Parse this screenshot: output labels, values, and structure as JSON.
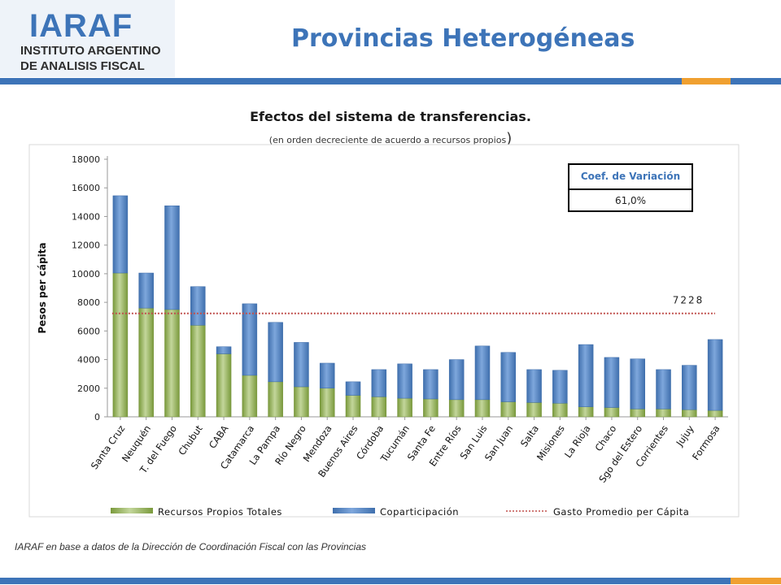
{
  "logo": {
    "wordmark": "IARAF",
    "line1": "INSTITUTO ARGENTINO",
    "line2": "DE ANALISIS FISCAL"
  },
  "slide_title": "Provincias Heterogéneas",
  "source_note": "IARAF en base a datos de la Dirección de Coordinación Fiscal con las Provincias",
  "colors": {
    "brand_blue": "#3d74b8",
    "own_resources": "#9bbb59",
    "coparticipation": "#4f81bd",
    "average_line": "#c0504d",
    "stripe_orange": "#f0a030"
  },
  "coef_box": {
    "header": "Coef. de Variación",
    "value": "61,0%"
  },
  "chart_data": {
    "type": "bar",
    "stacked": true,
    "title": "Efectos del sistema de transferencias.",
    "subtitle": "(en orden decreciente de acuerdo a recursos propios",
    "subtitle_paren": ")",
    "xlabel": "",
    "ylabel": "Pesos per cápita",
    "ylim": [
      0,
      18000
    ],
    "yticks": [
      0,
      2000,
      4000,
      6000,
      8000,
      10000,
      12000,
      14000,
      16000,
      18000
    ],
    "grid": false,
    "legend_position": "bottom",
    "categories": [
      "Santa Cruz",
      "Neuquén",
      "T. del Fuego",
      "Chubut",
      "CABA",
      "Catamarca",
      "La Pampa",
      "Río Negro",
      "Mendoza",
      "Buenos Aires",
      "Córdoba",
      "Tucumán",
      "Santa Fe",
      "Entre Ríos",
      "San Luis",
      "San Juan",
      "Salta",
      "Misiones",
      "La Rioja",
      "Chaco",
      "Sgo del Estero",
      "Corrientes",
      "Jujuy",
      "Formosa"
    ],
    "series": [
      {
        "name": "Recursos Propios Totales",
        "values": [
          10050,
          7600,
          7500,
          6400,
          4400,
          2900,
          2450,
          2100,
          2000,
          1500,
          1400,
          1300,
          1250,
          1200,
          1200,
          1050,
          1000,
          950,
          700,
          650,
          550,
          550,
          500,
          450
        ]
      },
      {
        "name": "Coparticipación",
        "values": [
          5400,
          2450,
          7250,
          2700,
          500,
          5000,
          4150,
          3100,
          1750,
          950,
          1900,
          2400,
          2050,
          2800,
          3750,
          3450,
          2300,
          2300,
          4350,
          3500,
          3500,
          2750,
          3100,
          4950
        ]
      }
    ],
    "reference_line": {
      "name": "Gasto Promedio per Cápita",
      "value": 7228,
      "label": "7228"
    }
  }
}
